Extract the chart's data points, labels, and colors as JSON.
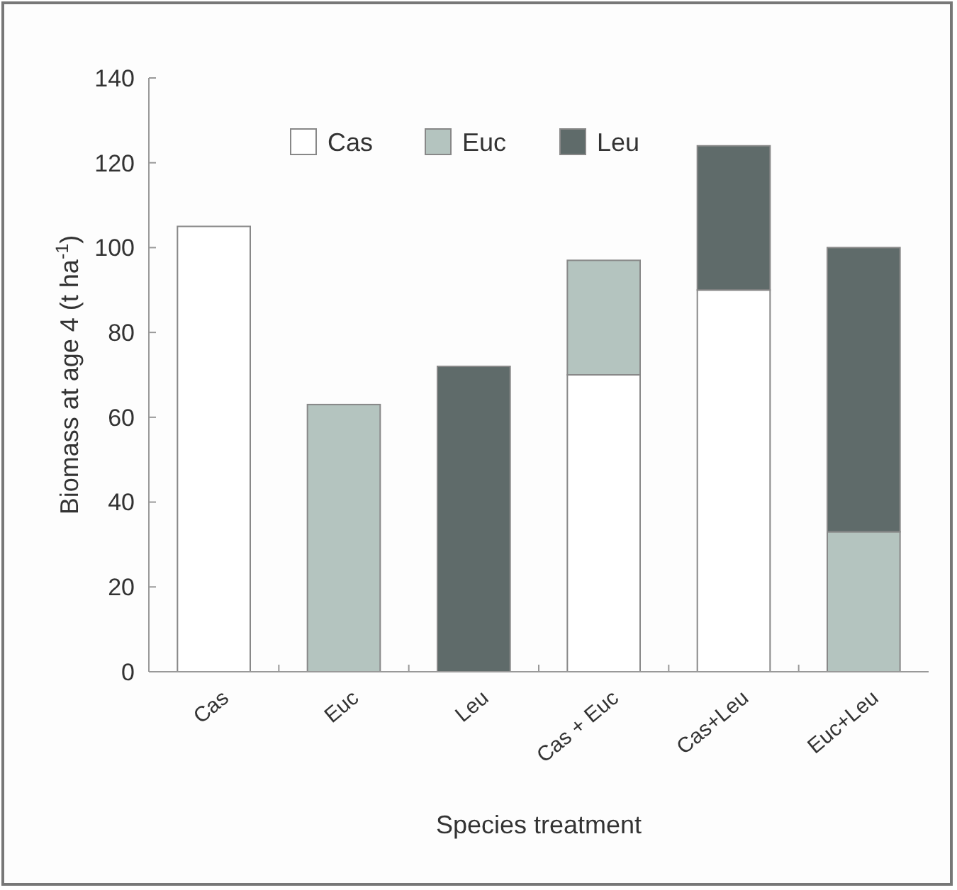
{
  "chart_data": {
    "type": "bar",
    "stacked": true,
    "xlabel": "Species treatment",
    "ylabel": "Biomass at age 4 (t ha$^{-1}$)",
    "categories": [
      "Cas",
      "Euc",
      "Leu",
      "Cas + Euc",
      "Cas+Leu",
      "Euc+Leu"
    ],
    "series": [
      {
        "name": "Cas",
        "color": "#ffffff",
        "values": [
          105,
          0,
          0,
          70,
          90,
          0
        ]
      },
      {
        "name": "Euc",
        "color": "#b4c4bf",
        "values": [
          0,
          63,
          0,
          27,
          0,
          33
        ]
      },
      {
        "name": "Leu",
        "color": "#5f6b6a",
        "values": [
          0,
          0,
          72,
          0,
          34,
          67
        ]
      }
    ],
    "ylim": [
      0,
      140
    ],
    "yticks": [
      0,
      20,
      40,
      60,
      80,
      100,
      120,
      140
    ],
    "grid": false,
    "legend": "top"
  }
}
